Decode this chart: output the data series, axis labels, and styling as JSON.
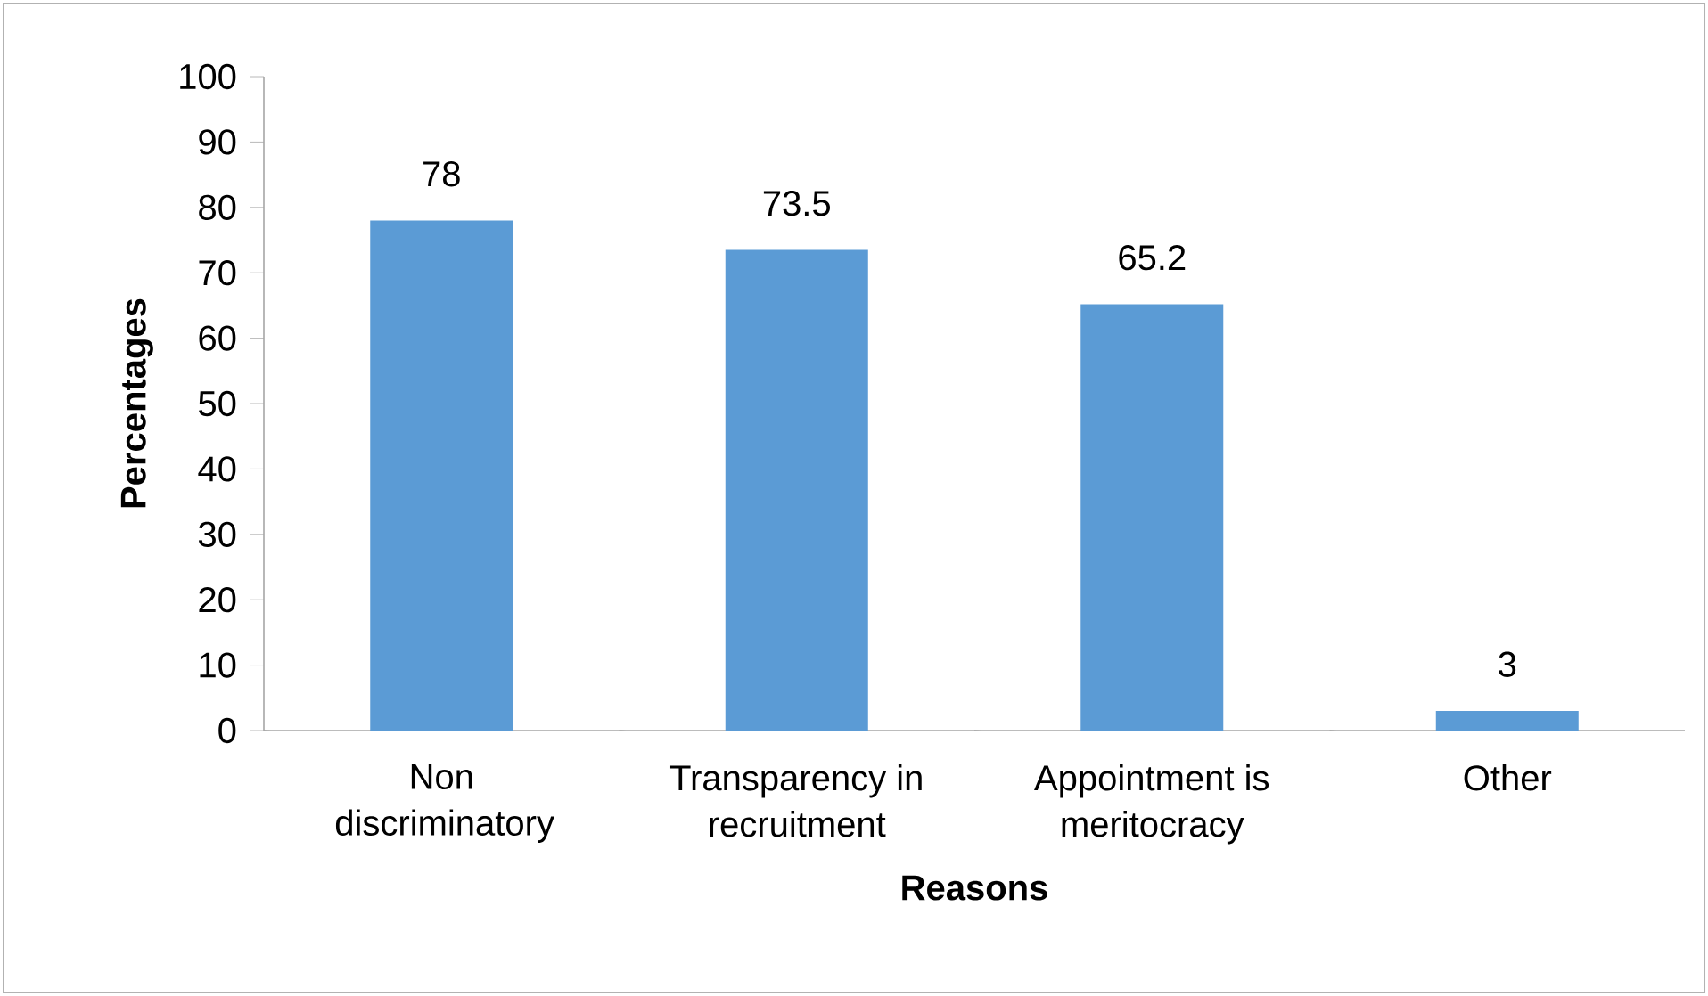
{
  "chart_data": {
    "type": "bar",
    "xlabel": "Reasons",
    "ylabel": "Percentages",
    "categories": [
      "Non discriminatory",
      "Transparency in recruitment",
      "Appointment is meritocracy",
      "Other"
    ],
    "values": [
      78,
      73.5,
      65.2,
      3
    ],
    "color": "#5b9bd5",
    "ylim": [
      0,
      100
    ],
    "yticks": [
      0,
      10,
      20,
      30,
      40,
      50,
      60,
      70,
      80,
      90,
      100
    ],
    "data_labels": true
  }
}
